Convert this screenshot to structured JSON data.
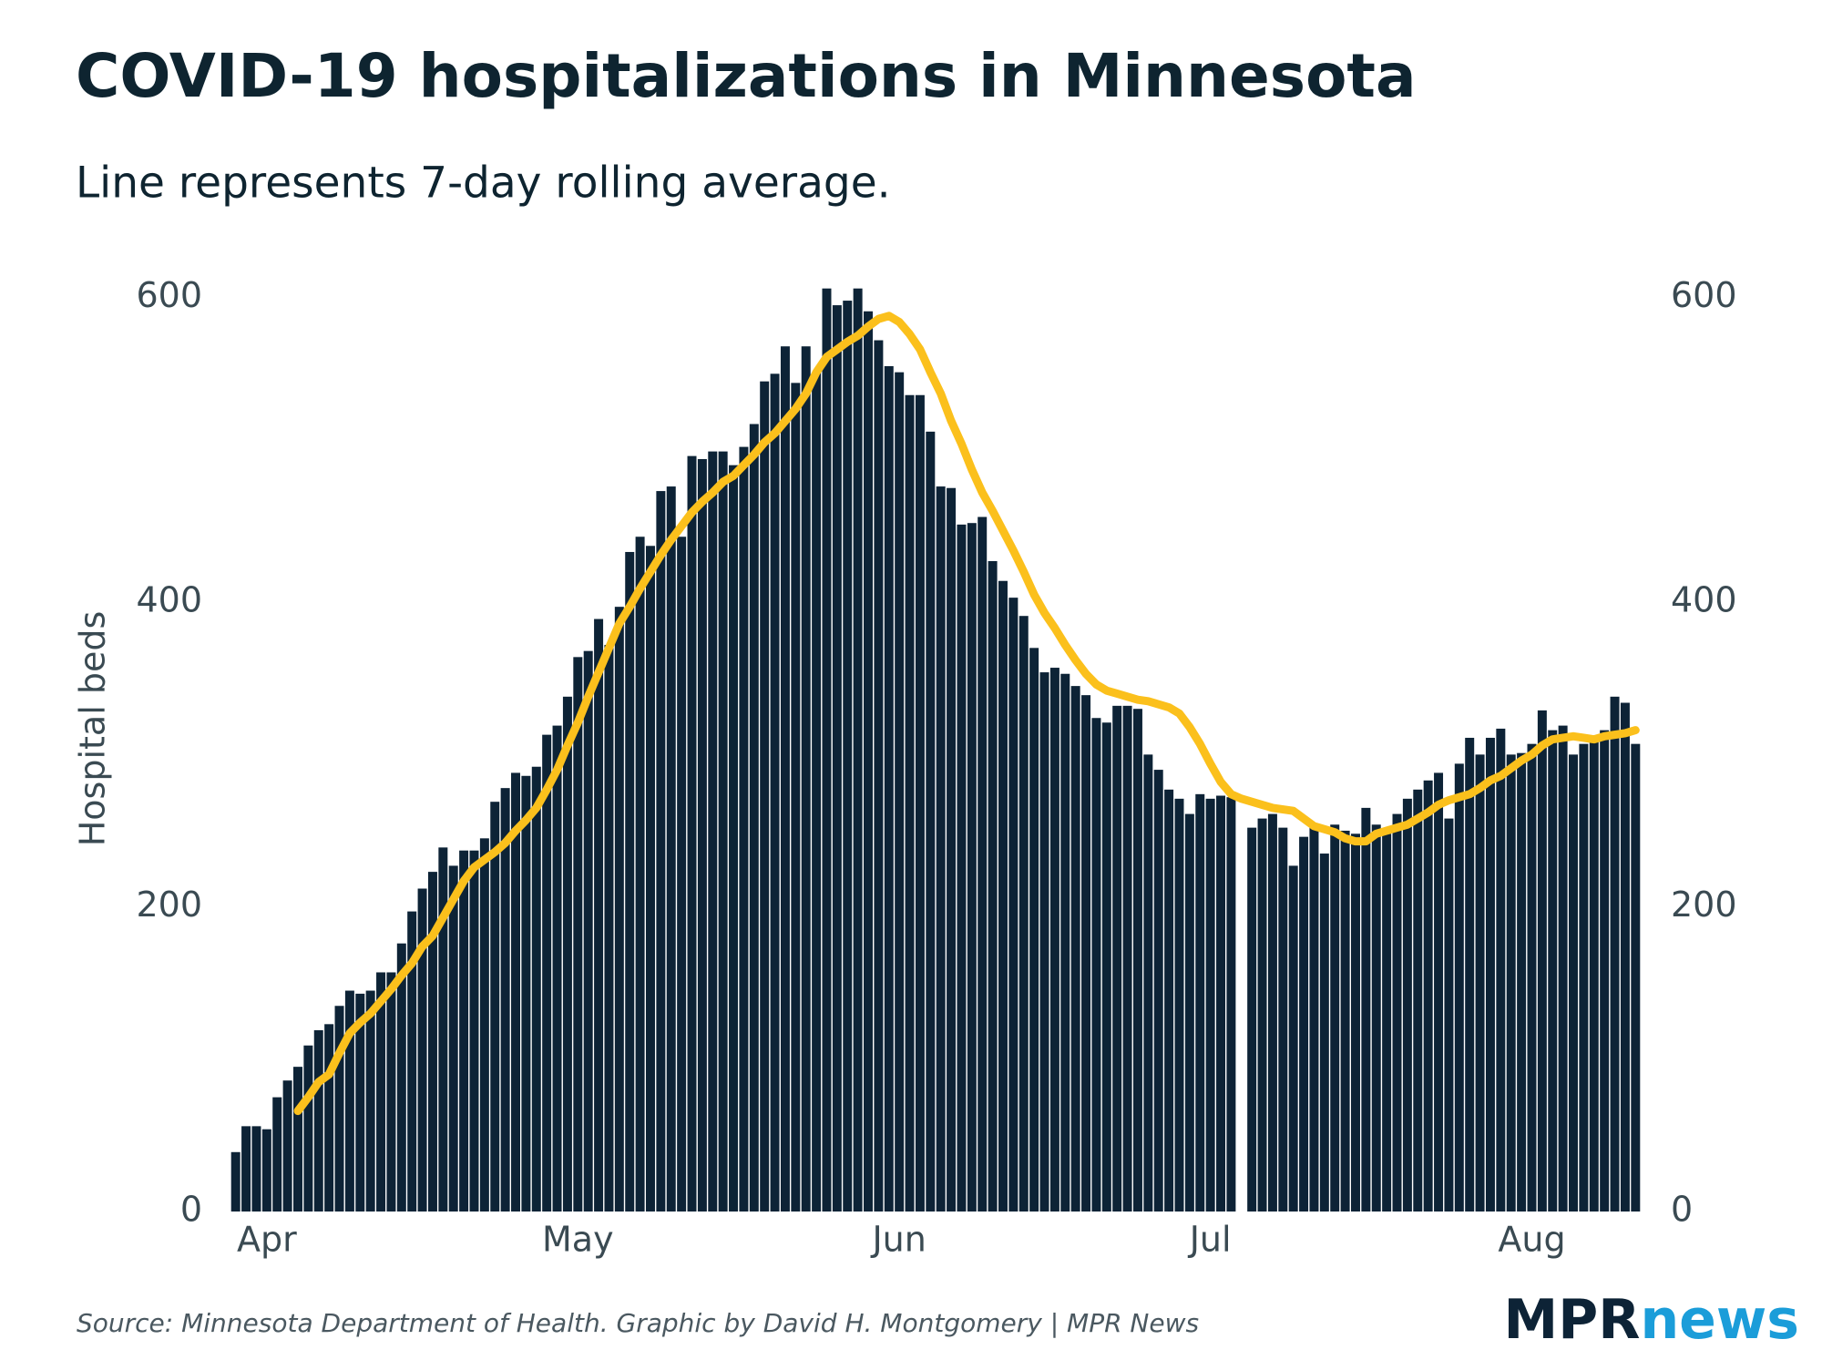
{
  "chart_data": {
    "type": "bar",
    "title": "COVID-19 hospitalizations in Minnesota",
    "subtitle": "Line represents 7-day rolling average.",
    "y_label": "Hospital beds",
    "source": "Source: Minnesota Department of Health. Graphic by David H. Montgomery | MPR News",
    "logo": {
      "left": "MPR",
      "right": "news"
    },
    "categories": [
      null,
      null,
      null,
      "Apr",
      null,
      null,
      null,
      null,
      null,
      null,
      null,
      null,
      null,
      null,
      null,
      null,
      null,
      null,
      null,
      null,
      null,
      null,
      null,
      null,
      null,
      null,
      null,
      null,
      null,
      null,
      null,
      null,
      null,
      "May",
      null,
      null,
      null,
      null,
      null,
      null,
      null,
      null,
      null,
      null,
      null,
      null,
      null,
      null,
      null,
      null,
      null,
      null,
      null,
      null,
      null,
      null,
      null,
      null,
      null,
      null,
      null,
      null,
      null,
      null,
      "Jun",
      null,
      null,
      null,
      null,
      null,
      null,
      null,
      null,
      null,
      null,
      null,
      null,
      null,
      null,
      null,
      null,
      null,
      null,
      null,
      null,
      null,
      null,
      null,
      null,
      null,
      null,
      null,
      null,
      null,
      "Jul",
      null,
      null,
      null,
      null,
      null,
      null,
      null,
      null,
      null,
      null,
      null,
      null,
      null,
      null,
      null,
      null,
      null,
      null,
      null,
      null,
      null,
      null,
      null,
      null,
      null,
      null,
      null,
      null,
      null,
      null,
      "Aug",
      null,
      null,
      null,
      null,
      null,
      null,
      null,
      null,
      null,
      null
    ],
    "series": [
      {
        "type": "bar",
        "color": "#0d2336",
        "values": [
          39,
          56,
          56,
          54,
          75,
          86,
          95,
          109,
          119,
          123,
          135,
          145,
          143,
          145,
          157,
          157,
          176,
          197,
          212,
          223,
          239,
          227,
          237,
          237,
          245,
          269,
          278,
          288,
          286,
          292,
          313,
          319,
          338,
          364,
          368,
          389,
          372,
          397,
          433,
          443,
          437,
          473,
          476,
          443,
          496,
          494,
          499,
          499,
          490,
          502,
          517,
          545,
          550,
          568,
          544,
          568,
          551,
          606,
          595,
          598,
          606,
          591,
          572,
          555,
          551,
          536,
          536,
          512,
          476,
          475,
          451,
          452,
          456,
          427,
          414,
          403,
          391,
          370,
          354,
          357,
          353,
          345,
          339,
          324,
          321,
          332,
          332,
          330,
          300,
          290,
          277,
          271,
          261,
          274,
          271,
          273,
          272,
          null,
          252,
          258,
          261,
          252,
          227,
          246,
          252,
          235,
          254,
          250,
          248,
          265,
          254,
          248,
          261,
          271,
          277,
          283,
          288,
          258,
          294,
          311,
          300,
          311,
          317,
          300,
          301,
          307,
          329,
          316,
          319,
          300,
          307,
          309,
          316,
          338,
          334,
          307
        ]
      },
      {
        "type": "line",
        "color": "#fbc01c",
        "values": [
          null,
          null,
          null,
          null,
          null,
          null,
          66,
          75,
          85,
          90,
          104,
          117,
          124,
          130,
          138,
          146,
          155,
          163,
          174,
          181,
          193,
          205,
          217,
          226,
          231,
          236,
          242,
          250,
          257,
          265,
          277,
          290,
          306,
          321,
          338,
          354,
          370,
          386,
          397,
          409,
          420,
          431,
          441,
          450,
          459,
          466,
          472,
          479,
          483,
          490,
          497,
          505,
          511,
          519,
          527,
          537,
          551,
          561,
          566,
          571,
          575,
          581,
          586,
          588,
          584,
          576,
          566,
          551,
          537,
          519,
          504,
          487,
          472,
          460,
          447,
          434,
          420,
          405,
          393,
          383,
          372,
          362,
          353,
          346,
          342,
          340,
          338,
          336,
          335,
          333,
          331,
          327,
          318,
          307,
          294,
          282,
          274,
          271,
          269,
          267,
          265,
          264,
          263,
          258,
          253,
          251,
          249,
          245,
          243,
          243,
          248,
          250,
          252,
          254,
          258,
          262,
          267,
          270,
          272,
          274,
          278,
          283,
          286,
          291,
          296,
          300,
          306,
          310,
          311,
          312,
          311,
          310,
          312,
          313,
          314,
          316
        ]
      }
    ],
    "ylim": [
      0,
      610
    ],
    "yticks": [
      0,
      200,
      400,
      600
    ],
    "y2lim": [
      0,
      610
    ],
    "y2ticks": [
      0,
      200,
      400,
      600
    ]
  }
}
